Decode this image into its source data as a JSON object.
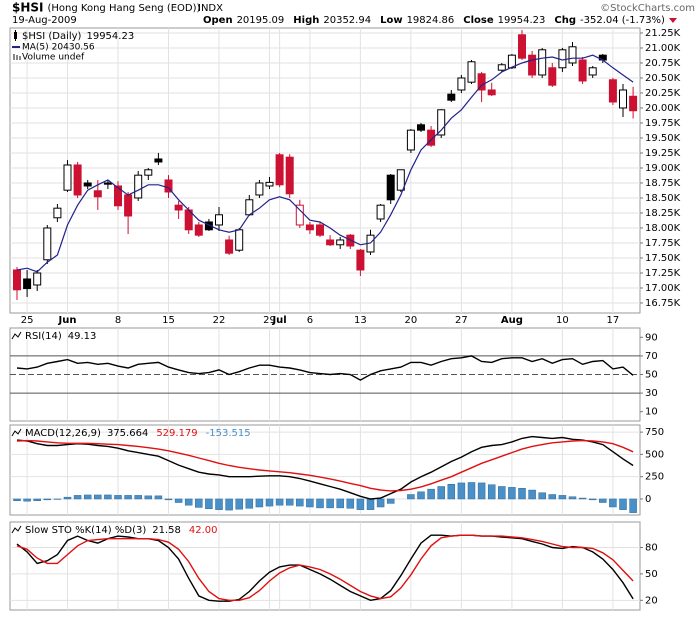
{
  "header": {
    "symbol": "$HSI",
    "name": "(Hong Kong Hang Seng (EOD))",
    "exchange": "INDX",
    "date": "19-Aug-2009",
    "quote": [
      {
        "label": "Open",
        "value": "20195.09"
      },
      {
        "label": "High",
        "value": "20352.94"
      },
      {
        "label": "Low",
        "value": "19824.86"
      },
      {
        "label": "Close",
        "value": "19954.23"
      },
      {
        "label": "Chg",
        "value": "-352.04 (-1.73%)"
      }
    ],
    "source": "©StockCharts.com"
  },
  "chart_data": [
    {
      "type": "candlestick",
      "label": "$HSI (Daily)",
      "reading": "19954.23",
      "note": "Volume undef",
      "up_color": "#000000",
      "down_color": "#cc1133",
      "grid": true,
      "categories": [
        null,
        "25",
        null,
        null,
        null,
        "Jun",
        null,
        null,
        null,
        null,
        "8",
        null,
        null,
        null,
        null,
        "15",
        null,
        null,
        null,
        null,
        "22",
        null,
        null,
        null,
        null,
        "29",
        "Jul",
        null,
        null,
        "6",
        null,
        null,
        null,
        null,
        "13",
        null,
        null,
        null,
        null,
        "20",
        null,
        null,
        null,
        null,
        "27",
        null,
        null,
        null,
        null,
        "Aug",
        null,
        null,
        null,
        null,
        "10",
        null,
        null,
        null,
        null,
        "17",
        null,
        null
      ],
      "open": [
        17300,
        17150,
        17050,
        17470,
        18170,
        18630,
        19050,
        18750,
        18620,
        18750,
        18700,
        18550,
        18500,
        18880,
        19150,
        18800,
        18380,
        18300,
        18050,
        18100,
        18050,
        17800,
        17630,
        18220,
        18550,
        18700,
        19220,
        19180,
        18050,
        18050,
        18050,
        17800,
        17720,
        17880,
        17630,
        17600,
        18150,
        18880,
        18630,
        19300,
        19720,
        19630,
        19550,
        20230,
        20300,
        20430,
        20570,
        20300,
        20630,
        20670,
        21220,
        20880,
        20550,
        20670,
        20670,
        20750,
        20800,
        20550,
        20880,
        20470,
        20000,
        20195.09
      ],
      "high": [
        17350,
        17300,
        17300,
        18050,
        18400,
        19130,
        19100,
        18800,
        18800,
        18800,
        18780,
        18600,
        18950,
        19000,
        19250,
        18880,
        18450,
        18350,
        18100,
        18150,
        18350,
        17870,
        18000,
        18550,
        18800,
        18850,
        19250,
        19230,
        18470,
        18100,
        18100,
        17880,
        17850,
        17900,
        17650,
        17970,
        18400,
        18900,
        18970,
        19650,
        19750,
        19700,
        19980,
        20300,
        20550,
        20800,
        20600,
        20420,
        20750,
        20900,
        21300,
        20950,
        21000,
        20750,
        21000,
        21100,
        20850,
        20700,
        20900,
        20500,
        20400,
        20352.94
      ],
      "low": [
        16800,
        16850,
        16950,
        17400,
        18100,
        18600,
        18500,
        18650,
        18300,
        18650,
        18300,
        17900,
        18450,
        18800,
        19050,
        18500,
        18150,
        17900,
        17850,
        17950,
        17950,
        17550,
        17600,
        18200,
        18500,
        18650,
        18680,
        18500,
        18000,
        17900,
        17850,
        17700,
        17650,
        17650,
        17200,
        17550,
        18100,
        18400,
        18600,
        19250,
        19600,
        19350,
        19500,
        20100,
        20250,
        20400,
        20100,
        20200,
        20600,
        20650,
        20800,
        20500,
        20500,
        20350,
        20600,
        20700,
        20400,
        20500,
        20750,
        20050,
        19850,
        19824.86
      ],
      "close": [
        16970,
        16990,
        17250,
        18000,
        18330,
        19050,
        18550,
        18700,
        18520,
        18730,
        18370,
        18200,
        18880,
        18970,
        19100,
        18600,
        18300,
        17970,
        17880,
        17970,
        18220,
        17580,
        17970,
        18470,
        18750,
        18760,
        18720,
        18570,
        18380,
        17970,
        17880,
        17720,
        17800,
        17700,
        17300,
        17880,
        18380,
        18470,
        18970,
        19630,
        19630,
        19380,
        19970,
        20130,
        20500,
        20770,
        20300,
        20220,
        20720,
        20880,
        20830,
        20550,
        20970,
        20380,
        20970,
        21020,
        20450,
        20670,
        20800,
        20100,
        20300,
        19954.23
      ],
      "series": [
        {
          "name": "MA(5)",
          "reading": "20430.56",
          "color": "#22228c",
          "values": [
            17300,
            17330,
            17270,
            17430,
            17550,
            18050,
            18380,
            18630,
            18720,
            18800,
            18670,
            18550,
            18630,
            18720,
            18720,
            18670,
            18470,
            18300,
            18130,
            18050,
            17970,
            17930,
            17970,
            18220,
            18330,
            18470,
            18520,
            18470,
            18300,
            18130,
            18100,
            18000,
            17880,
            17800,
            17720,
            17750,
            17930,
            18220,
            18550,
            18970,
            19300,
            19470,
            19630,
            19830,
            19970,
            20180,
            20380,
            20470,
            20600,
            20680,
            20750,
            20800,
            20830,
            20850,
            20800,
            20830,
            20830,
            20880,
            20800,
            20670,
            20550,
            20430.56
          ]
        }
      ],
      "ylim": [
        16583,
        21333
      ],
      "yticks": [
        {
          "value": 16750,
          "label": "16.75K"
        },
        {
          "value": 17000,
          "label": "17.00K"
        },
        {
          "value": 17250,
          "label": "17.25K"
        },
        {
          "value": 17500,
          "label": "17.50K"
        },
        {
          "value": 17750,
          "label": "17.75K"
        },
        {
          "value": 18000,
          "label": "18.00K"
        },
        {
          "value": 18250,
          "label": "18.25K"
        },
        {
          "value": 18500,
          "label": "18.50K"
        },
        {
          "value": 18750,
          "label": "18.75K"
        },
        {
          "value": 19000,
          "label": "19.00K"
        },
        {
          "value": 19250,
          "label": "19.25K"
        },
        {
          "value": 19500,
          "label": "19.50K"
        },
        {
          "value": 19750,
          "label": "19.75K"
        },
        {
          "value": 20000,
          "label": "20.00K"
        },
        {
          "value": 20250,
          "label": "20.25K"
        },
        {
          "value": 20500,
          "label": "20.50K"
        },
        {
          "value": 20750,
          "label": "20.75K"
        },
        {
          "value": 21000,
          "label": "21.00K"
        },
        {
          "value": 21250,
          "label": "21.25K"
        }
      ]
    },
    {
      "type": "line",
      "label": "RSI(14)",
      "grid": false,
      "series": [
        {
          "reading": "49.13",
          "color": "#000000",
          "values": [
            57,
            56,
            58,
            62,
            64,
            66,
            62,
            63,
            61,
            62,
            59,
            57,
            61,
            62,
            63,
            58,
            55,
            52,
            51,
            52,
            55,
            50,
            53,
            57,
            60,
            60,
            58,
            57,
            55,
            52,
            51,
            50,
            51,
            50,
            44,
            50,
            54,
            56,
            58,
            63,
            63,
            60,
            64,
            67,
            68,
            70,
            64,
            63,
            67,
            68,
            68,
            64,
            67,
            62,
            66,
            67,
            61,
            64,
            65,
            56,
            58,
            49.13
          ]
        }
      ],
      "reference_lines": [
        30,
        50,
        70
      ],
      "ylim": [
        0,
        100
      ],
      "yticks": [
        10,
        30,
        50,
        70,
        90
      ]
    },
    {
      "type": "macd",
      "label": "MACD(12,26,9)",
      "grid": true,
      "series": [
        {
          "type": "bar",
          "reading": "-153.515",
          "color": "#4a90c8",
          "values": [
            -20,
            -25,
            -20,
            -10,
            -5,
            20,
            40,
            45,
            45,
            45,
            40,
            40,
            40,
            35,
            35,
            -10,
            -40,
            -70,
            -95,
            -110,
            -120,
            -125,
            -115,
            -105,
            -90,
            -80,
            -70,
            -70,
            -80,
            -90,
            -100,
            -100,
            -100,
            -105,
            -120,
            -120,
            -90,
            -50,
            0,
            50,
            80,
            110,
            140,
            165,
            180,
            185,
            180,
            160,
            140,
            130,
            120,
            100,
            70,
            50,
            40,
            25,
            10,
            -10,
            -40,
            -90,
            -120,
            -153.515
          ]
        },
        {
          "type": "line",
          "reading": "375.664",
          "color": "#000000",
          "values": [
            660,
            650,
            620,
            600,
            600,
            610,
            620,
            615,
            600,
            590,
            570,
            540,
            520,
            500,
            480,
            430,
            380,
            340,
            300,
            280,
            270,
            250,
            250,
            250,
            255,
            260,
            260,
            250,
            230,
            200,
            170,
            140,
            110,
            70,
            30,
            0,
            10,
            60,
            110,
            190,
            250,
            300,
            360,
            420,
            470,
            530,
            580,
            600,
            610,
            640,
            680,
            700,
            690,
            680,
            690,
            670,
            660,
            640,
            610,
            530,
            450,
            375.664
          ]
        },
        {
          "type": "line",
          "reading": "529.179",
          "color": "#e01010",
          "values": [
            650,
            655,
            650,
            640,
            630,
            625,
            625,
            625,
            620,
            615,
            610,
            600,
            590,
            575,
            560,
            540,
            515,
            490,
            460,
            430,
            400,
            375,
            355,
            340,
            325,
            315,
            305,
            295,
            280,
            265,
            245,
            225,
            200,
            175,
            150,
            120,
            100,
            90,
            95,
            110,
            135,
            170,
            210,
            250,
            300,
            350,
            400,
            440,
            480,
            520,
            560,
            590,
            610,
            630,
            640,
            650,
            655,
            650,
            640,
            620,
            580,
            529.179
          ]
        }
      ],
      "ylim": [
        -180,
        830
      ],
      "yticks": [
        0,
        250,
        500,
        750
      ]
    },
    {
      "type": "line",
      "label": "Slow STO %K(14) %D(3)",
      "grid": true,
      "series": [
        {
          "reading": "21.58",
          "color": "#000000",
          "values": [
            84,
            75,
            62,
            65,
            72,
            88,
            93,
            88,
            85,
            90,
            93,
            92,
            90,
            90,
            88,
            80,
            67,
            45,
            25,
            20,
            19,
            19,
            21,
            30,
            42,
            52,
            58,
            60,
            60,
            55,
            50,
            44,
            37,
            30,
            25,
            20,
            22,
            31,
            48,
            67,
            85,
            94,
            94,
            93,
            94,
            94,
            93,
            93,
            92,
            91,
            90,
            87,
            84,
            80,
            79,
            81,
            80,
            75,
            67,
            55,
            40,
            21.58
          ]
        },
        {
          "reading": "42.00",
          "color": "#e01010",
          "values": [
            82,
            78,
            68,
            62,
            62,
            72,
            82,
            88,
            89,
            90,
            90,
            90,
            90,
            90,
            89,
            86,
            78,
            64,
            45,
            30,
            22,
            20,
            20,
            23,
            31,
            42,
            51,
            57,
            60,
            58,
            55,
            50,
            44,
            37,
            30,
            25,
            22,
            24,
            34,
            49,
            67,
            82,
            91,
            93,
            94,
            94,
            93,
            93,
            93,
            92,
            91,
            89,
            87,
            84,
            81,
            80,
            80,
            79,
            74,
            66,
            54,
            42
          ]
        }
      ],
      "ylim": [
        9,
        109
      ],
      "yticks": [
        20,
        50,
        80
      ]
    }
  ]
}
